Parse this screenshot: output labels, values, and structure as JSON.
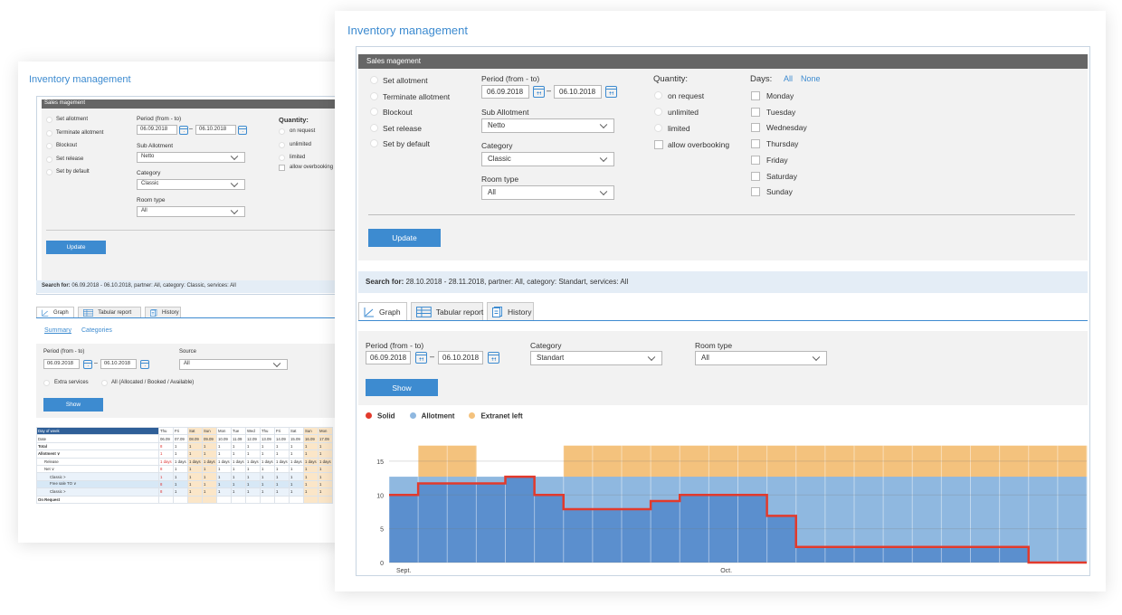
{
  "app_title": "Inventory management",
  "sales_bar": "Sales magement",
  "actions": [
    "Set allotment",
    "Terminate allotment",
    "Blockout",
    "Set release",
    "Set by default"
  ],
  "period_label": "Period (from - to)",
  "period_from": "06.09.2018",
  "period_dash": "–",
  "period_to": "06.10.2018",
  "sub_allotment_label": "Sub Allotment",
  "sub_allotment_value": "Netto",
  "category_label": "Category",
  "category_value": "Classic",
  "room_type_label": "Room type",
  "room_type_value": "All",
  "quantity_label": "Quantity:",
  "quantity_options": [
    "on request",
    "unlimited",
    "limited"
  ],
  "allow_overbooking": "allow overbooking",
  "days_label": "Days:",
  "days_all": "All",
  "days_none": "None",
  "days": [
    "Monday",
    "Tuesday",
    "Wednesday",
    "Thursday",
    "Friday",
    "Saturday",
    "Sunday"
  ],
  "update_button": "Update",
  "front_search": {
    "label": "Search for:",
    "text": "28.10.2018 - 28.11.2018,  partner: All,  category: Standart,  services: All"
  },
  "back_search": {
    "label": "Search for:",
    "text": "06.09.2018 - 06.10.2018,  partner: All,  category: Classic,  services: All"
  },
  "tabs": [
    "Graph",
    "Tabular report",
    "History"
  ],
  "graph_filter": {
    "period_label": "Period (from - to)",
    "from": "06.09.2018",
    "to": "06.10.2018",
    "category_label": "Category",
    "category_value": "Standart",
    "room_type_label": "Room type",
    "room_type_value": "All",
    "show_button": "Show"
  },
  "legend": [
    {
      "name": "Solid",
      "color": "#e23a2c"
    },
    {
      "name": "Allotment",
      "color": "#8fb8e0"
    },
    {
      "name": "Extranet left",
      "color": "#f4c27d"
    }
  ],
  "chart_data": {
    "type": "area",
    "x_labels": [
      "Sept.",
      "Oct."
    ],
    "y_ticks": [
      0,
      5,
      10,
      15
    ],
    "ylim": [
      0,
      19
    ],
    "grid": true,
    "series": [
      {
        "name": "Solid",
        "type": "step-line",
        "values": [
          10,
          11.7,
          11.7,
          11.7,
          12.7,
          10,
          7.9,
          7.9,
          7.9,
          9.1,
          10,
          10,
          10,
          6.9,
          2.3,
          2.3,
          2.3,
          2.3,
          2.3,
          2.3,
          2.3,
          2.3,
          0,
          0
        ]
      },
      {
        "name": "Allotment",
        "type": "area",
        "values": [
          12.7,
          12.7,
          12.7,
          12.7,
          12.7,
          12.7,
          12.7,
          12.7,
          12.7,
          12.7,
          12.7,
          12.7,
          12.7,
          12.7,
          12.7,
          12.7,
          12.7,
          12.7,
          12.7,
          12.7,
          12.7,
          12.7,
          12.7,
          12.7
        ]
      },
      {
        "name": "Extranet left",
        "type": "area",
        "values": [
          0,
          17.3,
          17.3,
          0,
          0,
          0,
          17.3,
          17.3,
          17.3,
          17.3,
          17.3,
          17.3,
          17.3,
          17.3,
          17.3,
          17.3,
          17.3,
          17.3,
          17.3,
          17.3,
          17.3,
          17.3,
          17.3,
          17.3
        ]
      }
    ]
  },
  "back": {
    "summary_link": "Summary",
    "categories_link": "Categories",
    "source_label": "Source",
    "source_value": "All",
    "extra_services": "Extra services",
    "all_option": "All (Allocated / Booked / Available)",
    "show_button": "Show",
    "mini_table": {
      "header": [
        "Day of week",
        "Thu",
        "Fri",
        "Sat",
        "Sun",
        "Mon",
        "Tue",
        "Wed",
        "Thu",
        "Fri",
        "Sat",
        "Sun",
        "Mon"
      ],
      "rows": [
        [
          "Date",
          "06.09",
          "07.09",
          "08.09",
          "09.09",
          "10.09",
          "11.09",
          "12.09",
          "13.09",
          "14.09",
          "15.09",
          "16.09",
          "17.09"
        ],
        [
          "Total",
          "8",
          "1",
          "1",
          "1",
          "1",
          "1",
          "1",
          "1",
          "1",
          "1",
          "1",
          "1"
        ],
        [
          "Allotment ∨",
          "1",
          "1",
          "1",
          "1",
          "1",
          "1",
          "1",
          "1",
          "1",
          "1",
          "1",
          "1"
        ],
        [
          "Release",
          "1 days",
          "1 days",
          "1 days",
          "1 days",
          "1 days",
          "1 days",
          "1 days",
          "1 days",
          "1 days",
          "1 days",
          "1 days",
          "1 days"
        ],
        [
          "Net ∨",
          "8",
          "1",
          "1",
          "1",
          "1",
          "1",
          "1",
          "1",
          "1",
          "1",
          "1",
          "1"
        ],
        [
          "Classic >",
          "1",
          "1",
          "1",
          "1",
          "1",
          "1",
          "1",
          "1",
          "1",
          "1",
          "1",
          "1"
        ],
        [
          "Free sale TO ∨",
          "8",
          "1",
          "1",
          "1",
          "1",
          "1",
          "1",
          "1",
          "1",
          "1",
          "1",
          "1"
        ],
        [
          "Classic >",
          "8",
          "1",
          "1",
          "1",
          "1",
          "1",
          "1",
          "1",
          "1",
          "1",
          "1",
          "1"
        ],
        [
          "On Request",
          "",
          "",
          "",
          "",
          "",
          "",
          "",
          "",
          "",
          "",
          "",
          ""
        ]
      ]
    }
  }
}
